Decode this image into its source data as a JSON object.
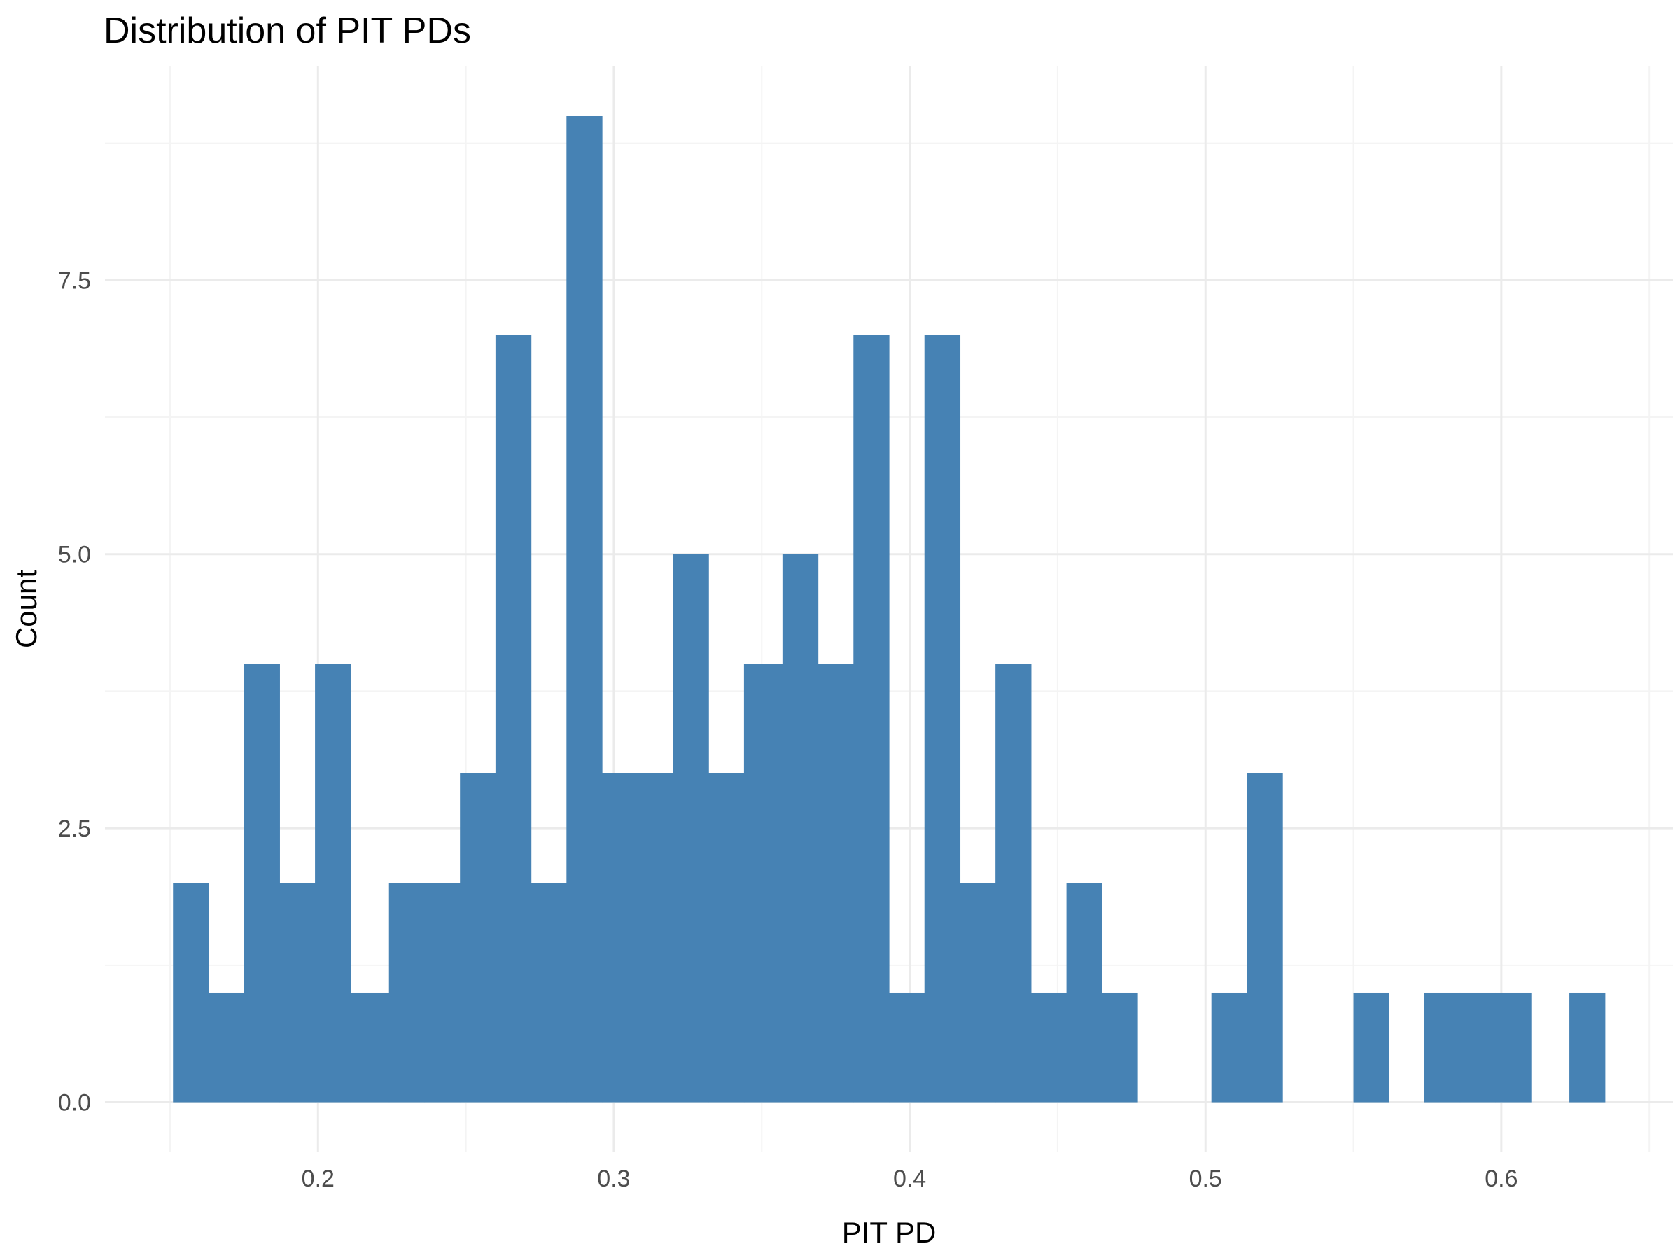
{
  "chart_data": {
    "type": "bar",
    "title": "Distribution of PIT PDs",
    "xlabel": "PIT PD",
    "ylabel": "Count",
    "bin_width": 0.0121,
    "bin_start": 0.151,
    "bins": [
      {
        "x0": 0.151,
        "x1": 0.163,
        "count": 2
      },
      {
        "x0": 0.163,
        "x1": 0.175,
        "count": 1
      },
      {
        "x0": 0.175,
        "x1": 0.187,
        "count": 4
      },
      {
        "x0": 0.187,
        "x1": 0.199,
        "count": 2
      },
      {
        "x0": 0.199,
        "x1": 0.211,
        "count": 4
      },
      {
        "x0": 0.211,
        "x1": 0.224,
        "count": 1
      },
      {
        "x0": 0.224,
        "x1": 0.236,
        "count": 2
      },
      {
        "x0": 0.236,
        "x1": 0.248,
        "count": 2
      },
      {
        "x0": 0.248,
        "x1": 0.26,
        "count": 3
      },
      {
        "x0": 0.26,
        "x1": 0.272,
        "count": 7
      },
      {
        "x0": 0.272,
        "x1": 0.284,
        "count": 2
      },
      {
        "x0": 0.284,
        "x1": 0.296,
        "count": 9
      },
      {
        "x0": 0.296,
        "x1": 0.308,
        "count": 3
      },
      {
        "x0": 0.308,
        "x1": 0.32,
        "count": 3
      },
      {
        "x0": 0.32,
        "x1": 0.332,
        "count": 5
      },
      {
        "x0": 0.332,
        "x1": 0.344,
        "count": 3
      },
      {
        "x0": 0.344,
        "x1": 0.357,
        "count": 4
      },
      {
        "x0": 0.357,
        "x1": 0.369,
        "count": 5
      },
      {
        "x0": 0.369,
        "x1": 0.381,
        "count": 4
      },
      {
        "x0": 0.381,
        "x1": 0.393,
        "count": 7
      },
      {
        "x0": 0.393,
        "x1": 0.405,
        "count": 1
      },
      {
        "x0": 0.405,
        "x1": 0.417,
        "count": 7
      },
      {
        "x0": 0.417,
        "x1": 0.429,
        "count": 2
      },
      {
        "x0": 0.429,
        "x1": 0.441,
        "count": 4
      },
      {
        "x0": 0.441,
        "x1": 0.453,
        "count": 1
      },
      {
        "x0": 0.453,
        "x1": 0.465,
        "count": 2
      },
      {
        "x0": 0.465,
        "x1": 0.477,
        "count": 1
      },
      {
        "x0": 0.477,
        "x1": 0.49,
        "count": 0
      },
      {
        "x0": 0.49,
        "x1": 0.502,
        "count": 0
      },
      {
        "x0": 0.502,
        "x1": 0.514,
        "count": 1
      },
      {
        "x0": 0.514,
        "x1": 0.526,
        "count": 3
      },
      {
        "x0": 0.526,
        "x1": 0.538,
        "count": 0
      },
      {
        "x0": 0.538,
        "x1": 0.55,
        "count": 0
      },
      {
        "x0": 0.55,
        "x1": 0.562,
        "count": 1
      },
      {
        "x0": 0.562,
        "x1": 0.574,
        "count": 0
      },
      {
        "x0": 0.574,
        "x1": 0.586,
        "count": 1
      },
      {
        "x0": 0.586,
        "x1": 0.598,
        "count": 1
      },
      {
        "x0": 0.598,
        "x1": 0.61,
        "count": 1
      },
      {
        "x0": 0.61,
        "x1": 0.623,
        "count": 0
      },
      {
        "x0": 0.623,
        "x1": 0.635,
        "count": 1
      }
    ],
    "xlim": [
      0.128,
      0.658
    ],
    "ylim": [
      -0.45,
      9.45
    ],
    "x_ticks": [
      0.2,
      0.3,
      0.4,
      0.5,
      0.6
    ],
    "x_tick_labels": [
      "0.2",
      "0.3",
      "0.4",
      "0.5",
      "0.6"
    ],
    "x_minor_ticks": [
      0.15,
      0.25,
      0.35,
      0.45,
      0.55,
      0.65
    ],
    "y_ticks": [
      0,
      2.5,
      5,
      7.5
    ],
    "y_tick_labels": [
      "0.0",
      "2.5",
      "5.0",
      "7.5"
    ],
    "y_minor_ticks": [
      1.25,
      3.75,
      6.25,
      8.75
    ],
    "grid": true,
    "legend": "none",
    "colors": {
      "bar": "#4682b4",
      "grid_major": "#ebebeb",
      "grid_minor": "#f4f4f4",
      "tick_label": "#4d4d4d",
      "text": "#000000"
    }
  }
}
